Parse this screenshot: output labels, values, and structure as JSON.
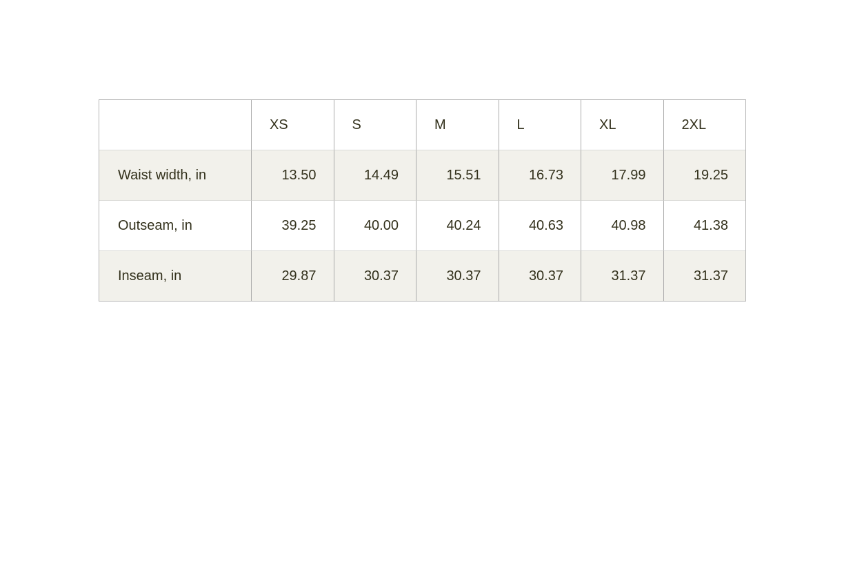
{
  "chart_data": {
    "type": "table",
    "columns": [
      "",
      "XS",
      "S",
      "M",
      "L",
      "XL",
      "2XL"
    ],
    "rows": [
      {
        "label": "Waist width, in",
        "values": [
          "13.50",
          "14.49",
          "15.51",
          "16.73",
          "17.99",
          "19.25"
        ]
      },
      {
        "label": "Outseam, in",
        "values": [
          "39.25",
          "40.00",
          "40.24",
          "40.63",
          "40.98",
          "41.38"
        ]
      },
      {
        "label": "Inseam, in",
        "values": [
          "29.87",
          "30.37",
          "30.37",
          "30.37",
          "31.37",
          "31.37"
        ]
      }
    ]
  },
  "colors": {
    "text": "#33311c",
    "row_stripe_background": "#f2f1eb",
    "row_plain_background": "#ffffff",
    "outer_border": "#b5b5b5",
    "column_border": "#a9a9a9",
    "row_border": "#dadad7",
    "page_background": "#ffffff"
  }
}
